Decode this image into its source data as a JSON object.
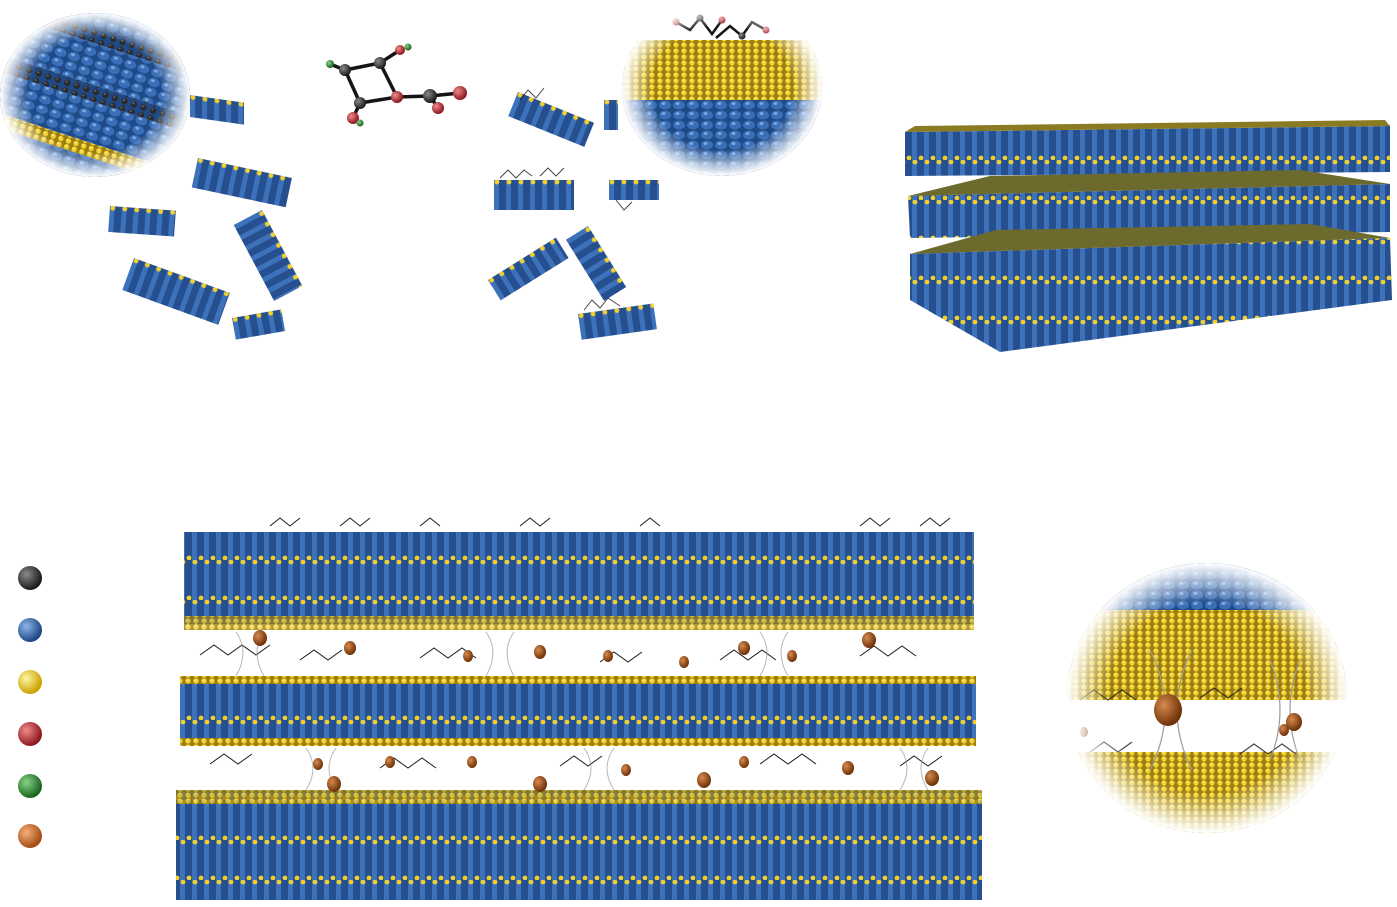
{
  "colors": {
    "carbon": "#2b2b2d",
    "sheet_blue": "#2a5aa0",
    "sheet_blue_light": "#4f86cf",
    "sulfur": "#f2cf2a",
    "oxygen": "#c8303a",
    "hydrogen": "#2e8a32",
    "ion": "#d9722f"
  },
  "legend": {
    "entries": [
      {
        "color": "#2b2b2d",
        "icon": "carbon-sphere"
      },
      {
        "color": "#2a5aa0",
        "icon": "metal-sphere"
      },
      {
        "color": "#f2cf2a",
        "icon": "sulfur-sphere"
      },
      {
        "color": "#c8303a",
        "icon": "oxygen-sphere"
      },
      {
        "color": "#2e8a32",
        "icon": "hydrogen-sphere"
      },
      {
        "color": "#d9722f",
        "icon": "ion-sphere"
      }
    ]
  }
}
